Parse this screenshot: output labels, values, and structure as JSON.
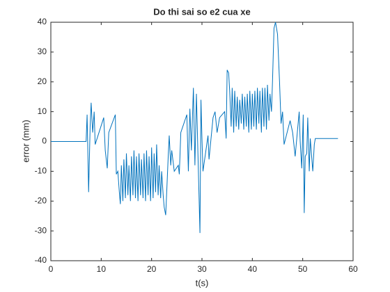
{
  "chart_data": {
    "type": "line",
    "title": "Do thi sai so e2 cua xe",
    "x_label": "t(s)",
    "y_label": "error (mm)",
    "color": "#0072bd",
    "x": [
      0,
      7,
      7.2,
      7.5,
      7.8,
      8.0,
      8.3,
      8.6,
      8.8,
      10.5,
      10.8,
      11.2,
      11.5,
      12.8,
      13.0,
      13.3,
      13.6,
      13.8,
      14.0,
      14.3,
      14.5,
      14.8,
      15.0,
      15.3,
      15.5,
      15.8,
      16.0,
      16.3,
      16.5,
      16.8,
      17.0,
      17.3,
      17.5,
      17.8,
      18.0,
      18.3,
      18.5,
      18.8,
      19.0,
      19.3,
      19.5,
      19.8,
      20.0,
      20.3,
      20.5,
      20.8,
      21.0,
      21.3,
      21.5,
      21.8,
      22.0,
      22.3,
      22.5,
      22.8,
      23.0,
      23.3,
      23.5,
      23.8,
      24.0,
      24.5,
      25.3,
      25.5,
      25.8,
      27.0,
      27.3,
      27.6,
      27.9,
      28.3,
      28.6,
      28.9,
      29.6,
      29.8,
      30.0,
      30.2,
      31.2,
      31.4,
      32.2,
      32.6,
      33.0,
      33.5,
      34.5,
      34.8,
      35.0,
      35.3,
      35.5,
      35.8,
      36.0,
      36.3,
      36.5,
      36.8,
      37.0,
      37.3,
      37.5,
      37.8,
      38.0,
      38.3,
      38.5,
      38.8,
      39.0,
      39.3,
      39.5,
      39.8,
      40.0,
      40.3,
      40.5,
      40.8,
      41.0,
      41.3,
      41.5,
      41.8,
      42.0,
      42.3,
      42.5,
      42.8,
      43.0,
      43.3,
      43.5,
      43.8,
      44.0,
      44.3,
      44.6,
      45.0,
      45.4,
      45.7,
      46.0,
      46.3,
      47.5,
      48.0,
      48.5,
      49.3,
      49.5,
      49.8,
      50.1,
      50.3,
      50.5,
      50.8,
      51.0,
      51.3,
      51.5,
      52.0,
      52.3,
      52.5,
      57
    ],
    "values": [
      0,
      0,
      9,
      -17,
      5,
      13,
      3,
      10,
      -1,
      8,
      -3,
      -9,
      3,
      9,
      -11,
      -10,
      -17,
      -21,
      -8,
      -20,
      -6,
      -19,
      -4,
      -18,
      -8,
      -20,
      -5,
      -18,
      -3,
      -19,
      -5,
      -20,
      -4,
      -18,
      -6,
      -19,
      -4,
      -20,
      -3,
      -18,
      -5,
      -20,
      -2,
      -19,
      -4,
      -17,
      -1,
      -18,
      -8,
      -19,
      -10,
      -18,
      -22,
      -24.7,
      -17,
      -5,
      2,
      -8,
      -3,
      -10,
      -8,
      -11,
      3,
      9,
      -10,
      11,
      -3,
      18,
      -8,
      16,
      -30.7,
      14,
      1,
      -10,
      2,
      -6,
      8,
      10,
      3,
      8,
      10,
      1,
      24,
      23,
      17,
      5,
      18,
      3,
      17,
      5,
      15,
      4,
      14,
      6,
      16,
      4,
      15,
      5,
      16,
      3,
      17,
      4,
      16,
      5,
      17,
      4,
      18,
      6,
      17,
      3,
      18,
      5,
      18,
      4,
      19,
      7,
      16,
      10,
      20,
      38,
      40,
      36,
      20,
      6,
      10,
      -1,
      7,
      3,
      -5,
      10,
      0,
      -9,
      9,
      -24,
      -5,
      -4,
      8,
      -10,
      1,
      -10,
      -1,
      1,
      1
    ],
    "xlim": [
      0,
      60
    ],
    "xticks": [
      0,
      10,
      20,
      30,
      40,
      50,
      60
    ],
    "ylim": [
      -40,
      40
    ],
    "yticks": [
      -40,
      -30,
      -20,
      -10,
      0,
      10,
      20,
      30,
      40
    ]
  }
}
